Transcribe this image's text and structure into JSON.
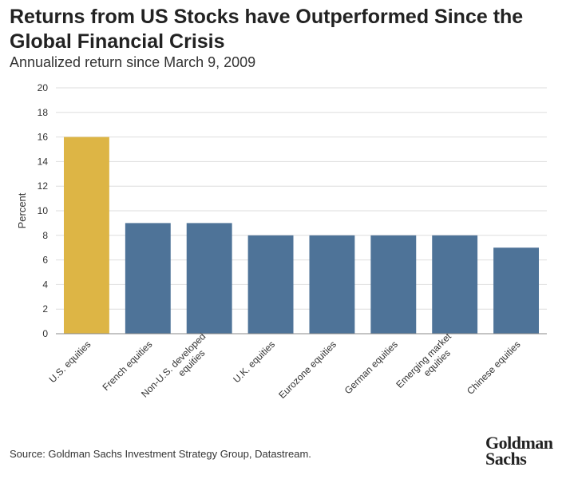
{
  "title": "Returns from US Stocks have Outperformed Since the Global Financial Crisis",
  "subtitle": "Annualized return since March 9, 2009",
  "source": "Source: Goldman Sachs Investment Strategy Group, Datastream.",
  "logo": {
    "line1": "Goldman",
    "line2": "Sachs"
  },
  "chart_data": {
    "type": "bar",
    "categories": [
      [
        "U.S. equities"
      ],
      [
        "French equities"
      ],
      [
        "Non-U.S. developed",
        "equities"
      ],
      [
        "U.K. equities"
      ],
      [
        "Eurozone equities"
      ],
      [
        "German equities"
      ],
      [
        "Emerging market",
        "equities"
      ],
      [
        "Chinese equities"
      ]
    ],
    "values": [
      16,
      9,
      9,
      8,
      8,
      8,
      8,
      7
    ],
    "ylabel": "Percent",
    "xlabel": "",
    "ylim": [
      0,
      20
    ],
    "yticks": [
      0,
      2,
      4,
      6,
      8,
      10,
      12,
      14,
      16,
      18,
      20
    ],
    "grid": true,
    "colors": {
      "highlight": "#DDB545",
      "default": "#4E7398",
      "grid": "#DDDDDD",
      "axis": "#888888",
      "text": "#333333"
    },
    "highlight_index": 0
  }
}
